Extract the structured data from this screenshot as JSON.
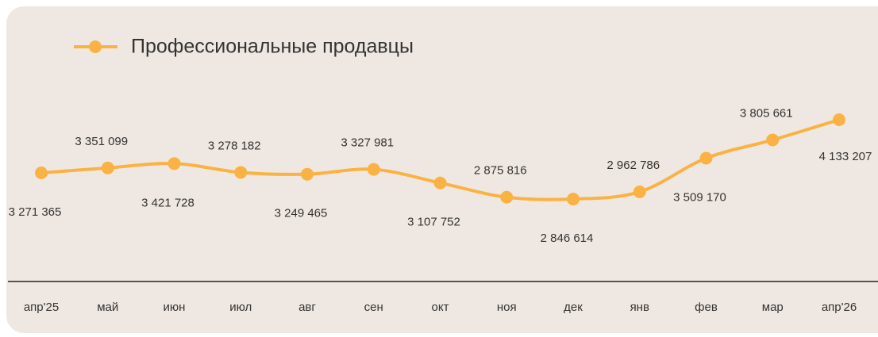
{
  "chart_data": {
    "type": "line",
    "categories": [
      "апр'25",
      "май",
      "июн",
      "июл",
      "авг",
      "сен",
      "окт",
      "ноя",
      "дек",
      "янв",
      "фев",
      "мар",
      "апр'26"
    ],
    "series": [
      {
        "name": "Профессиональные продавцы",
        "color": "#fbb244",
        "values": [
          3271365,
          3351099,
          3421728,
          3278182,
          3249465,
          3327981,
          3107752,
          2875816,
          2846614,
          2962786,
          3509170,
          3805661,
          4133207
        ],
        "value_labels": [
          "3 271 365",
          "3 351 099",
          "3 421 728",
          "3 278 182",
          "3 249 465",
          "3 327 981",
          "3 107 752",
          "2 875 816",
          "2 846 614",
          "2 962 786",
          "3 509 170",
          "3 805 661",
          "4 133 207"
        ]
      }
    ],
    "legend": "top-left"
  }
}
